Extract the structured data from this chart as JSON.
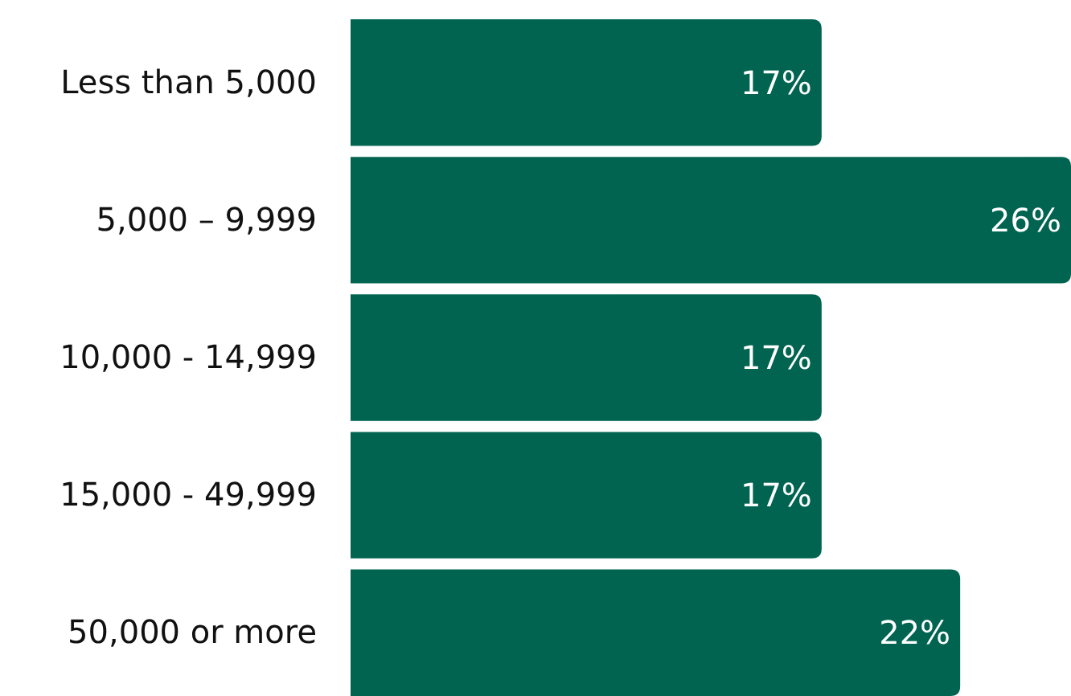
{
  "chart_data": {
    "type": "bar",
    "orientation": "horizontal",
    "categories": [
      "Less than 5,000",
      "5,000 – 9,999",
      "10,000 - 14,999",
      "15,000 - 49,999",
      "50,000 or more"
    ],
    "values": [
      17,
      26,
      17,
      17,
      22
    ],
    "color": "#006450",
    "data_labels": true,
    "value_labels": [
      "17%",
      "26%",
      "17%",
      "17%",
      "22%"
    ]
  }
}
